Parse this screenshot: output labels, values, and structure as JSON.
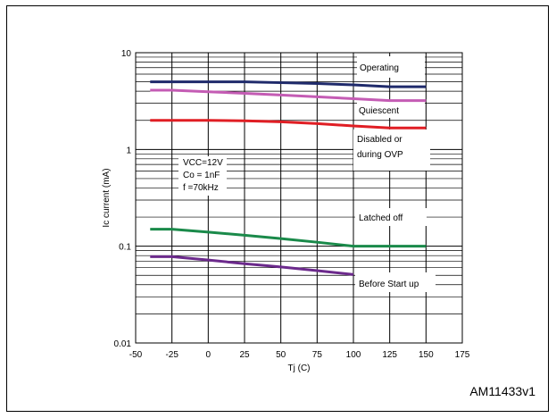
{
  "figure_id": "AM11433v1",
  "chart_data": {
    "type": "line",
    "xlabel": "Tj (C)",
    "ylabel": "Ic current (mA)",
    "xlim": [
      -50,
      175
    ],
    "ylim": [
      0.01,
      10
    ],
    "yscale": "log",
    "x_ticks": [
      "-50",
      "-25",
      "0",
      "25",
      "50",
      "75",
      "100",
      "125",
      "150",
      "175"
    ],
    "y_ticks": [
      "10",
      "1",
      "0.1",
      "0.01"
    ],
    "grid": true,
    "conditions": [
      "VCC=12V",
      "Co = 1nF",
      "f =70kHz"
    ],
    "series": [
      {
        "name": "Operating",
        "color": "#1f2a6b",
        "x": [
          -40,
          0,
          25,
          50,
          75,
          100,
          125,
          150
        ],
        "y": [
          5.0,
          5.0,
          5.0,
          4.9,
          4.8,
          4.65,
          4.45,
          4.45
        ]
      },
      {
        "name": "Quiescent",
        "color": "#c45cb4",
        "x": [
          -40,
          -25,
          0,
          25,
          50,
          75,
          100,
          125,
          150
        ],
        "y": [
          4.1,
          4.1,
          3.95,
          3.8,
          3.65,
          3.5,
          3.35,
          3.2,
          3.2
        ]
      },
      {
        "name": "Disabled or during OVP",
        "color": "#e01e24",
        "x": [
          -40,
          0,
          25,
          50,
          75,
          100,
          125,
          150
        ],
        "y": [
          2.0,
          2.0,
          1.98,
          1.93,
          1.85,
          1.75,
          1.67,
          1.67
        ]
      },
      {
        "name": "Latched off",
        "color": "#1a8a4a",
        "x": [
          -40,
          -25,
          0,
          25,
          50,
          75,
          100,
          125,
          150
        ],
        "y": [
          0.15,
          0.15,
          0.14,
          0.13,
          0.12,
          0.11,
          0.1,
          0.1,
          0.1
        ]
      },
      {
        "name": "Before Start up",
        "color": "#6c2a8c",
        "x": [
          -40,
          -25,
          0,
          25,
          50,
          75,
          100
        ],
        "y": [
          0.078,
          0.078,
          0.072,
          0.066,
          0.061,
          0.056,
          0.051
        ]
      }
    ]
  }
}
